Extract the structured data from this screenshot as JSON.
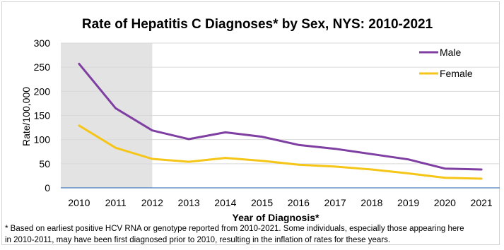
{
  "chart_data": {
    "type": "line",
    "title": "Rate of Hepatitis C Diagnoses* by Sex, NYS: 2010-2021",
    "xlabel": "Year of Diagnosis*",
    "ylabel": "Rate/100,000",
    "categories": [
      "2010",
      "2011",
      "2012",
      "2013",
      "2014",
      "2015",
      "2016",
      "2017",
      "2018",
      "2019",
      "2020",
      "2021"
    ],
    "ylim": [
      0,
      300
    ],
    "yticks": [
      "0",
      "50",
      "100",
      "150",
      "200",
      "250",
      "300"
    ],
    "grid": true,
    "legend_position": "top-right",
    "shaded_period": [
      "2010",
      "2012"
    ],
    "series": [
      {
        "name": "Male",
        "color": "#7f3fa2",
        "values": [
          257,
          165,
          119,
          101,
          115,
          106,
          89,
          81,
          70,
          59,
          40,
          38
        ]
      },
      {
        "name": "Female",
        "color": "#f5c518",
        "values": [
          129,
          83,
          60,
          54,
          62,
          56,
          48,
          44,
          38,
          30,
          21,
          19
        ]
      }
    ]
  },
  "footnote": {
    "line1": "* Based on earliest positive HCV RNA or genotype reported from 2010-2021. Some individuals, especially those appearing here",
    "line2": "in 2010-2011, may have been first diagnosed prior to 2010, resulting in the inflation of rates for these years."
  }
}
